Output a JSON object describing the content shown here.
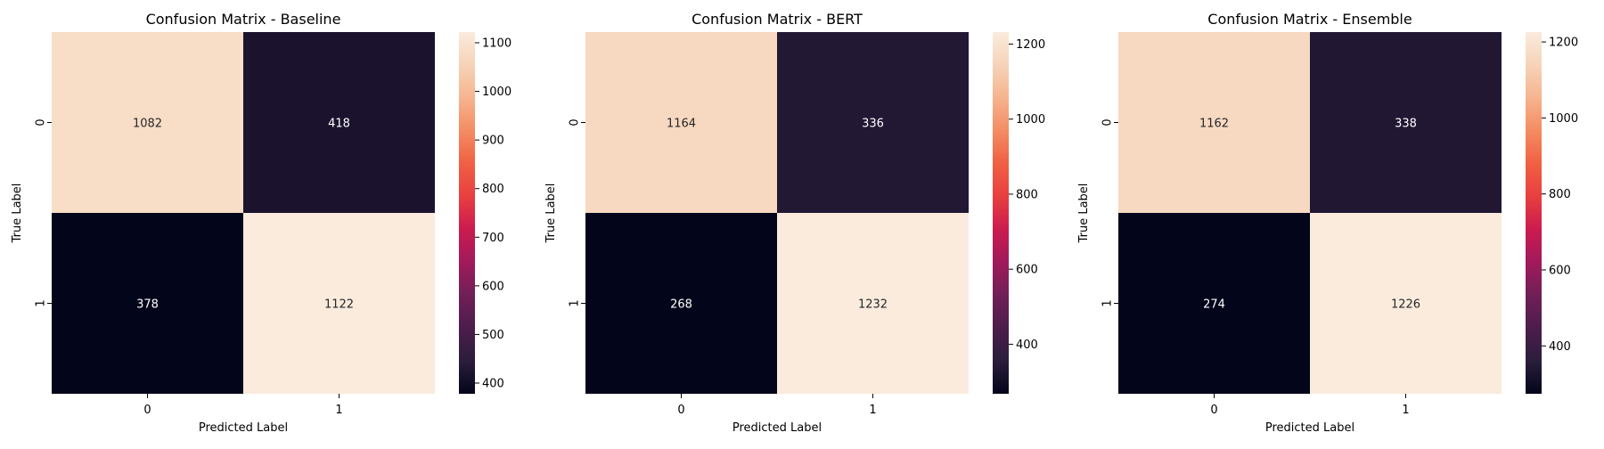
{
  "chart_data": [
    {
      "type": "heatmap",
      "title": "Confusion Matrix - Baseline",
      "xlabel": "Predicted Label",
      "ylabel": "True Label",
      "x_categories": [
        "0",
        "1"
      ],
      "y_categories": [
        "0",
        "1"
      ],
      "values": [
        [
          1082,
          418
        ],
        [
          378,
          1122
        ]
      ],
      "colorbar": {
        "min": 378,
        "max": 1122,
        "ticks": [
          400,
          500,
          600,
          700,
          800,
          900,
          1000,
          1100
        ]
      },
      "colormap": "rocket"
    },
    {
      "type": "heatmap",
      "title": "Confusion Matrix - BERT",
      "xlabel": "Predicted Label",
      "ylabel": "True Label",
      "x_categories": [
        "0",
        "1"
      ],
      "y_categories": [
        "0",
        "1"
      ],
      "values": [
        [
          1164,
          336
        ],
        [
          268,
          1232
        ]
      ],
      "colorbar": {
        "min": 268,
        "max": 1232,
        "ticks": [
          400,
          600,
          800,
          1000,
          1200
        ]
      },
      "colormap": "rocket"
    },
    {
      "type": "heatmap",
      "title": "Confusion Matrix - Ensemble",
      "xlabel": "Predicted Label",
      "ylabel": "True Label",
      "x_categories": [
        "0",
        "1"
      ],
      "y_categories": [
        "0",
        "1"
      ],
      "values": [
        [
          1162,
          338
        ],
        [
          274,
          1226
        ]
      ],
      "colorbar": {
        "min": 274,
        "max": 1226,
        "ticks": [
          400,
          600,
          800,
          1000,
          1200
        ]
      },
      "colormap": "rocket"
    }
  ],
  "colors": {
    "rocket_stops": [
      "#03051a",
      "#2b1d3c",
      "#4c1d4b",
      "#701f57",
      "#a11a5b",
      "#cb1b4f",
      "#e83f3f",
      "#f06043",
      "#f48c62",
      "#f6b48e",
      "#f6d3b8",
      "#faebdd"
    ],
    "light_text": "#ffffff",
    "dark_text": "#262626"
  }
}
